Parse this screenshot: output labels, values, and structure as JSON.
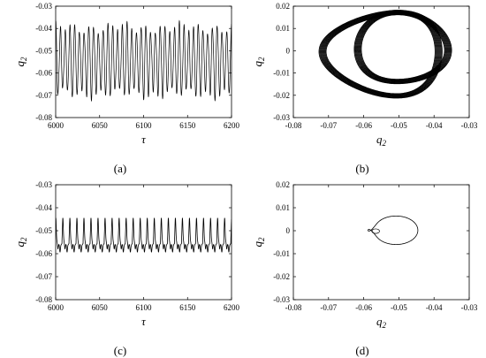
{
  "chart_data": [
    {
      "panel": "a",
      "panel_label": "(a)",
      "type": "line",
      "xlabel": "τ",
      "ylabel": "q",
      "ylabel_sub": "2",
      "xlim": [
        6000,
        6200
      ],
      "ylim": [
        -0.08,
        -0.03
      ],
      "xticks": [
        "6000",
        "6050",
        "6100",
        "6150",
        "6200"
      ],
      "yticks": [
        "-0.03",
        "-0.04",
        "-0.05",
        "-0.06",
        "-0.07",
        "-0.08"
      ],
      "series": [
        {
          "signal": "quasi-periodic oscillation",
          "cycles": 37,
          "max": [
            -0.044,
            -0.036
          ],
          "min": [
            -0.071,
            -0.066
          ],
          "midline": -0.055
        }
      ]
    },
    {
      "panel": "b",
      "panel_label": "(b)",
      "type": "scatter",
      "xlabel": "q",
      "xlabel_sub": "2",
      "ylabel": "q",
      "ylabel_sub": "2",
      "xlim": [
        -0.08,
        -0.03
      ],
      "ylim": [
        -0.03,
        0.02
      ],
      "xticks": [
        "-0.08",
        "-0.07",
        "-0.06",
        "-0.05",
        "-0.04",
        "-0.03"
      ],
      "yticks": [
        "0.02",
        "0.01",
        "0",
        "-0.01",
        "-0.02",
        "-0.03"
      ],
      "series": [
        {
          "orbit": "torus (two interleaved loops)",
          "x_range": [
            -0.071,
            -0.036
          ],
          "y_range": [
            -0.022,
            0.018
          ]
        }
      ]
    },
    {
      "panel": "c",
      "panel_label": "(c)",
      "type": "line",
      "xlabel": "τ",
      "ylabel": "q",
      "ylabel_sub": "2",
      "xlim": [
        6000,
        6200
      ],
      "ylim": [
        -0.08,
        -0.03
      ],
      "xticks": [
        "6000",
        "6050",
        "6100",
        "6150",
        "6200"
      ],
      "yticks": [
        "-0.03",
        "-0.04",
        "-0.05",
        "-0.06",
        "-0.07",
        "-0.08"
      ],
      "series": [
        {
          "signal": "periodic oscillation",
          "cycles": 25,
          "max": -0.045,
          "min": -0.0585
        }
      ]
    },
    {
      "panel": "d",
      "panel_label": "(d)",
      "type": "scatter",
      "xlabel": "q",
      "xlabel_sub": "2",
      "ylabel": "q",
      "ylabel_sub": "2",
      "xlim": [
        -0.08,
        -0.03
      ],
      "ylim": [
        -0.03,
        0.02
      ],
      "xticks": [
        "-0.08",
        "-0.07",
        "-0.06",
        "-0.05",
        "-0.04",
        "-0.03"
      ],
      "yticks": [
        "0.02",
        "0.01",
        "0",
        "-0.01",
        "-0.02",
        "-0.03"
      ],
      "series": [
        {
          "orbit": "single closed loop with small inner loop",
          "x_range": [
            -0.0585,
            -0.045
          ],
          "y_range": [
            -0.0065,
            0.0065
          ]
        }
      ]
    }
  ]
}
